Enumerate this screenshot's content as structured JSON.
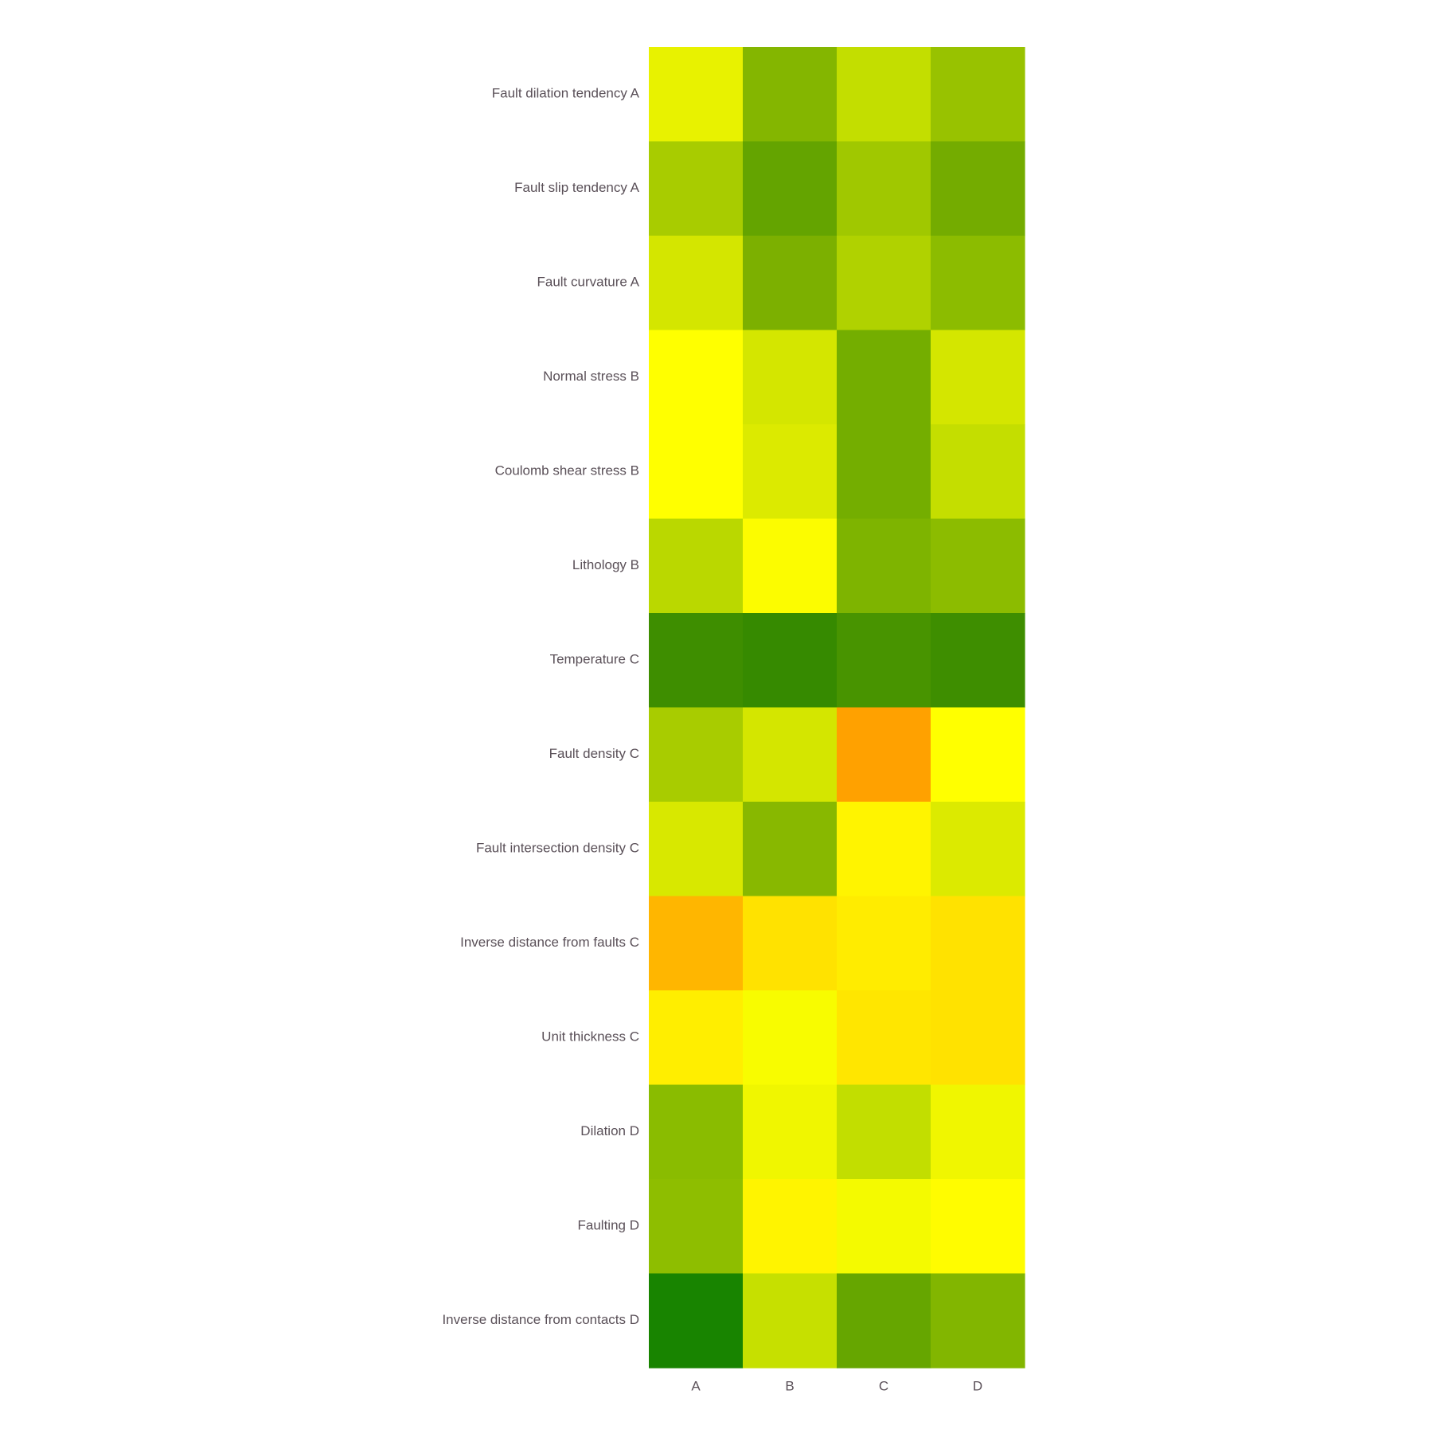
{
  "chart_data": {
    "type": "heatmap",
    "title": "",
    "xlabel": "",
    "ylabel": "",
    "x": [
      "A",
      "B",
      "C",
      "D"
    ],
    "y": [
      "Fault dilation tendency A",
      "Fault slip tendency A",
      "Fault curvature A",
      "Normal stress B",
      "Coulomb shear stress B",
      "Lithology B",
      "Temperature C",
      "Fault density C",
      "Fault intersection density C",
      "Inverse distance from faults C",
      "Unit thickness C",
      "Dilation D",
      "Faulting D",
      "Inverse distance from contacts D"
    ],
    "cell_colors": [
      [
        "#e8f200",
        "#84b600",
        "#c3de00",
        "#98c200"
      ],
      [
        "#a8cc00",
        "#64a400",
        "#a0c800",
        "#74ac00"
      ],
      [
        "#d4e600",
        "#7cb000",
        "#b0d200",
        "#8cbc00"
      ],
      [
        "#ffff00",
        "#d4e600",
        "#74ae00",
        "#d4e600"
      ],
      [
        "#ffff00",
        "#dcea00",
        "#74ae00",
        "#c4de00"
      ],
      [
        "#bad800",
        "#fcfc00",
        "#7eb400",
        "#8cbc00"
      ],
      [
        "#3e8e00",
        "#368a00",
        "#489400",
        "#3e8e00"
      ],
      [
        "#a8cc00",
        "#d4e600",
        "#ffa100",
        "#ffff00"
      ],
      [
        "#d8e800",
        "#88b800",
        "#fff400",
        "#dcea00"
      ],
      [
        "#ffb600",
        "#ffe200",
        "#ffec00",
        "#ffe200"
      ],
      [
        "#ffee00",
        "#f8fc00",
        "#ffe600",
        "#ffe200"
      ],
      [
        "#8abc00",
        "#f0f600",
        "#c2de00",
        "#f0f600"
      ],
      [
        "#8ebe00",
        "#fff400",
        "#f4fa00",
        "#fffc00"
      ],
      [
        "#188400",
        "#c6e000",
        "#66a600",
        "#82b600"
      ]
    ],
    "grid": false,
    "legend": "none",
    "colors": {
      "label_text": "#5a5058"
    }
  }
}
